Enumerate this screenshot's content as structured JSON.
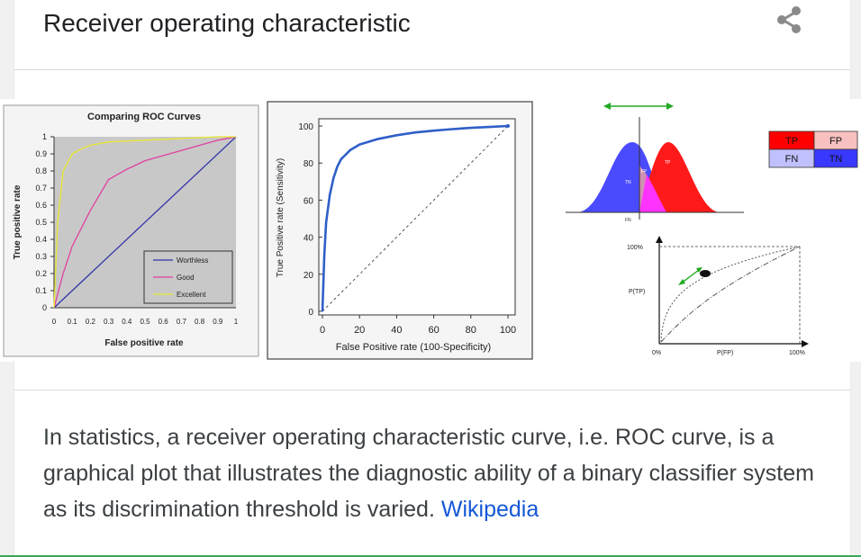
{
  "header": {
    "title": "Receiver operating characteristic"
  },
  "description": {
    "text": "In statistics, a receiver operating characteristic curve, i.e. ROC curve, is a graphical plot that illustrates the diagnostic ability of a binary classifier system as its discrimination threshold is varied.",
    "link_label": "Wikipedia"
  },
  "icons": {
    "share": "share-icon"
  },
  "colors": {
    "worthless": "#3333aa",
    "good": "#e040a0",
    "excellent": "#e8e830",
    "roc_curve": "#2f5fc8",
    "tp": "#ff0000",
    "fp": "#f4b4b4",
    "fn": "#b8b8ff",
    "tn": "#3030ff",
    "link": "#1558d6"
  },
  "images": [
    {
      "title": "Comparing ROC Curves",
      "ylabel": "True positive rate",
      "xlabel": "False positive rate",
      "yticks": [
        "1",
        "0.9",
        "0.8",
        "0.7",
        "0.6",
        "0.5",
        "0.4",
        "0.3",
        "0.2",
        "0.1",
        "0"
      ],
      "xticks": [
        "0",
        "0.1",
        "0.2",
        "0.3",
        "0.4",
        "0.5",
        "0.6",
        "0.7",
        "0.8",
        "0.9",
        "1"
      ],
      "legend": [
        "Worthless",
        "Good",
        "Excellent"
      ]
    },
    {
      "ylabel": "True Positive rate (Sensitivity)",
      "xlabel": "False Positive rate (100-Specificity)",
      "yticks": [
        "100",
        "80",
        "60",
        "40",
        "20",
        "0"
      ],
      "xticks": [
        "0",
        "20",
        "40",
        "60",
        "80",
        "100"
      ]
    },
    {
      "matrix": [
        "TP",
        "FP",
        "FN",
        "TN"
      ],
      "dist_labels": [
        "TN",
        "TP",
        "FP",
        "FN"
      ],
      "roc_y_top": "100%",
      "roc_y_mid": "P(TP)",
      "roc_x_start": "0%",
      "roc_x_mid": "P(FP)",
      "roc_x_end": "100%"
    }
  ],
  "chart_data": [
    {
      "type": "line",
      "title": "Comparing ROC Curves",
      "xlabel": "False positive rate",
      "ylabel": "True positive rate",
      "xlim": [
        0,
        1
      ],
      "ylim": [
        0,
        1
      ],
      "grid": false,
      "legend_position": "bottom-right",
      "series": [
        {
          "name": "Worthless",
          "x": [
            0,
            1
          ],
          "y": [
            0,
            1
          ]
        },
        {
          "name": "Good",
          "x": [
            0,
            0.05,
            0.1,
            0.2,
            0.3,
            0.4,
            0.5,
            0.6,
            0.7,
            0.8,
            0.9,
            1
          ],
          "y": [
            0,
            0.2,
            0.36,
            0.57,
            0.75,
            0.81,
            0.86,
            0.89,
            0.92,
            0.95,
            0.98,
            1
          ]
        },
        {
          "name": "Excellent",
          "x": [
            0,
            0.02,
            0.05,
            0.1,
            0.15,
            0.2,
            0.3,
            0.5,
            0.7,
            0.9,
            1
          ],
          "y": [
            0,
            0.5,
            0.8,
            0.9,
            0.93,
            0.95,
            0.97,
            0.98,
            0.99,
            1,
            1
          ]
        }
      ]
    },
    {
      "type": "line",
      "xlabel": "False Positive rate (100-Specificity)",
      "ylabel": "True Positive rate (Sensitivity)",
      "xlim": [
        0,
        100
      ],
      "ylim": [
        0,
        100
      ],
      "grid": false,
      "series": [
        {
          "x": [
            0,
            1,
            2,
            4,
            6,
            8,
            10,
            15,
            20,
            30,
            40,
            50,
            60,
            70,
            80,
            90,
            100
          ],
          "y": [
            0,
            30,
            48,
            63,
            72,
            78,
            82,
            87,
            90,
            93,
            95,
            96.5,
            97.5,
            98.3,
            99,
            99.5,
            100
          ]
        },
        {
          "x": [
            0,
            100
          ],
          "y": [
            0,
            100
          ]
        }
      ]
    }
  ]
}
